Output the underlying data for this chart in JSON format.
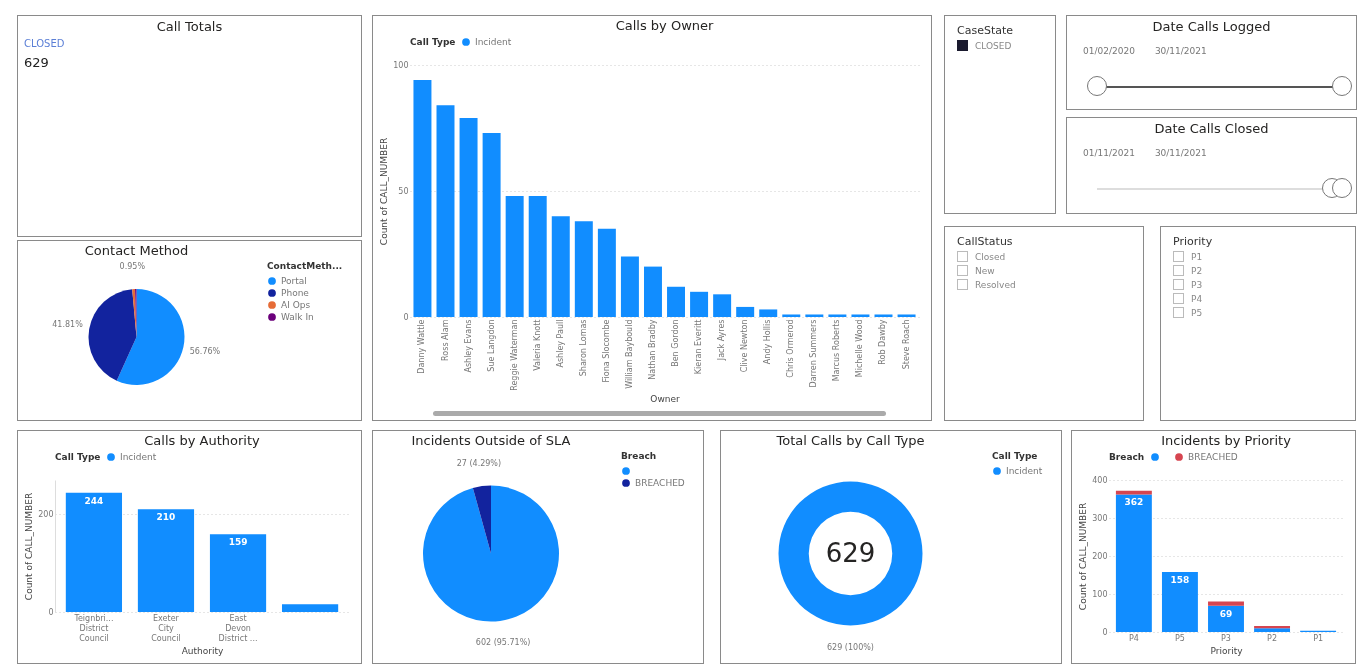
{
  "chart_data": [
    {
      "type": "other",
      "title": "Call Totals",
      "annotations": [
        "CLOSED",
        "629"
      ]
    },
    {
      "type": "bar",
      "title": "Calls by Owner",
      "xlabel": "Owner",
      "ylabel": "Count of CALL_NUMBER",
      "legend_title": "Call Type",
      "legend": "top left",
      "grid": "y",
      "ylim": [
        0,
        100
      ],
      "yticks": [
        0,
        50,
        100
      ],
      "categories": [
        "Danny Wattle",
        "Ross Alam",
        "Ashley Evans",
        "Sue Langdon",
        "Reggie Waterman",
        "Valeria Knott",
        "Ashley Paull",
        "Sharon Lomas",
        "Fiona Slocombe",
        "William Baybould",
        "Nathan Bradby",
        "Ben Gordon",
        "Kieran Everitt",
        "Jack Ayres",
        "Clive Newton",
        "Andy Hollis",
        "Chris Ormerod",
        "Darren Summers",
        "Marcus Roberts",
        "Michelle Wood",
        "Rob Dawby",
        "Steve Roach"
      ],
      "series": [
        {
          "name": "Incident",
          "color": "#118dff",
          "values": [
            94,
            84,
            79,
            73,
            48,
            48,
            40,
            38,
            35,
            24,
            20,
            12,
            10,
            9,
            4,
            3,
            1,
            1,
            1,
            1,
            1,
            1
          ]
        }
      ]
    },
    {
      "type": "other",
      "title": "CaseState",
      "annotations": [
        "CLOSED"
      ]
    },
    {
      "type": "other",
      "title": "Date Calls Logged",
      "annotations": [
        "01/02/2020",
        "30/11/2021"
      ]
    },
    {
      "type": "other",
      "title": "Date Calls Closed",
      "annotations": [
        "01/11/2021",
        "30/11/2021"
      ]
    },
    {
      "type": "pie",
      "title": "Contact Method",
      "legend_title": "ContactMeth...",
      "legend": "right",
      "categories": [
        "Portal",
        "Phone",
        "AI Ops",
        "Walk In"
      ],
      "values": [
        56.76,
        41.81,
        0.95,
        0.48
      ],
      "value_labels": [
        "56.76%",
        "41.81%",
        "0.95%",
        null
      ],
      "colors": [
        "#118dff",
        "#12239e",
        "#e66c37",
        "#6b007b"
      ]
    },
    {
      "type": "other",
      "title": "CallStatus",
      "annotations": [
        "Closed",
        "New",
        "Resolved"
      ]
    },
    {
      "type": "other",
      "title": "Priority",
      "annotations": [
        "P1",
        "P2",
        "P3",
        "P4",
        "P5"
      ]
    },
    {
      "type": "bar",
      "title": "Calls by Authority",
      "xlabel": "Authority",
      "ylabel": "Count of CALL_NUMBER",
      "legend_title": "Call Type",
      "legend": "top left",
      "grid": "y",
      "ylim": [
        0,
        270
      ],
      "yticks": [
        0,
        200
      ],
      "categories": [
        "Teignbri... District Council",
        "Exeter City Council",
        "East Devon District ...",
        null
      ],
      "series": [
        {
          "name": "Incident",
          "color": "#118dff",
          "values": [
            244,
            210,
            159,
            16
          ],
          "value_labels": [
            "244",
            "210",
            "159",
            null
          ]
        }
      ]
    },
    {
      "type": "pie",
      "title": "Incidents Outside of SLA",
      "legend_title": "Breach",
      "legend": "right",
      "categories": [
        null,
        "BREACHED"
      ],
      "values": [
        602,
        27
      ],
      "value_labels": [
        "602 (95.71%)",
        "27 (4.29%)"
      ],
      "colors": [
        "#118dff",
        "#12239e"
      ]
    },
    {
      "type": "donut",
      "title": "Total Calls by Call Type",
      "legend_title": "Call Type",
      "legend": "right",
      "categories": [
        "Incident"
      ],
      "values": [
        629
      ],
      "value_labels": [
        "629 (100%)"
      ],
      "colors": [
        "#118dff"
      ],
      "annotations": [
        "629"
      ]
    },
    {
      "type": "bar",
      "title": "Incidents by Priority",
      "xlabel": "Priority",
      "ylabel": "Count of CALL_NUMBER",
      "legend_title": "Breach",
      "legend": "top left",
      "grid": "y",
      "stacked": true,
      "ylim": [
        0,
        400
      ],
      "yticks": [
        0,
        100,
        200,
        300,
        400
      ],
      "categories": [
        "P4",
        "P5",
        "P3",
        "P2",
        "P1"
      ],
      "series": [
        {
          "color": "#118dff",
          "values": [
            362,
            158,
            69,
            10,
            3
          ],
          "value_labels": [
            "362",
            "158",
            "69",
            null,
            null
          ]
        },
        {
          "name": "BREACHED",
          "color": "#d64550",
          "values": [
            10,
            0,
            11,
            6,
            0
          ]
        }
      ]
    }
  ]
}
